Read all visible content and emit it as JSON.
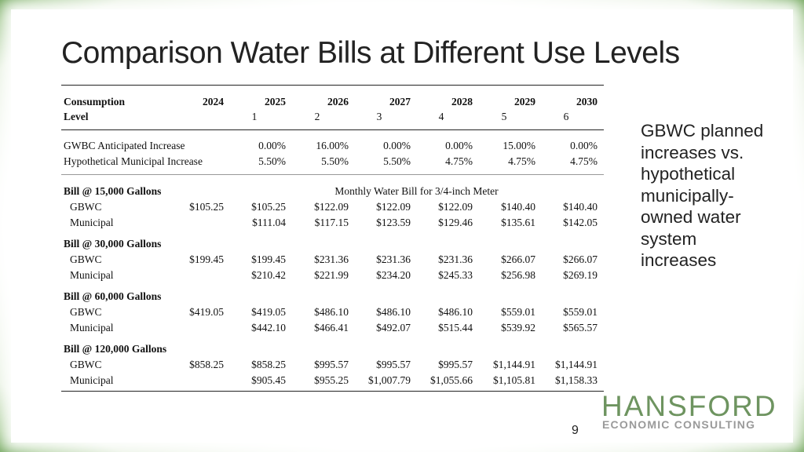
{
  "title": "Comparison Water Bills at Different Use Levels",
  "table": {
    "header": {
      "label1": "Consumption",
      "label2": "Level",
      "years": [
        "2024",
        "2025",
        "2026",
        "2027",
        "2028",
        "2029",
        "2030"
      ],
      "indices": [
        "",
        "1",
        "2",
        "3",
        "4",
        "5",
        "6"
      ]
    },
    "increases": [
      {
        "label": "GWBC Anticipated Increase",
        "values": [
          "",
          "0.00%",
          "16.00%",
          "0.00%",
          "0.00%",
          "15.00%",
          "0.00%"
        ]
      },
      {
        "label": "Hypothetical Municipal Increase",
        "values": [
          "",
          "5.50%",
          "5.50%",
          "5.50%",
          "4.75%",
          "4.75%",
          "4.75%"
        ]
      }
    ],
    "meter_note": "Monthly Water Bill for 3/4-inch Meter",
    "groups": [
      {
        "heading": "Bill @ 15,000 Gallons",
        "rows": [
          {
            "label": "GBWC",
            "values": [
              "$105.25",
              "$105.25",
              "$122.09",
              "$122.09",
              "$122.09",
              "$140.40",
              "$140.40"
            ]
          },
          {
            "label": "Municipal",
            "values": [
              "",
              "$111.04",
              "$117.15",
              "$123.59",
              "$129.46",
              "$135.61",
              "$142.05"
            ]
          }
        ]
      },
      {
        "heading": "Bill @ 30,000 Gallons",
        "rows": [
          {
            "label": "GBWC",
            "values": [
              "$199.45",
              "$199.45",
              "$231.36",
              "$231.36",
              "$231.36",
              "$266.07",
              "$266.07"
            ]
          },
          {
            "label": "Municipal",
            "values": [
              "",
              "$210.42",
              "$221.99",
              "$234.20",
              "$245.33",
              "$256.98",
              "$269.19"
            ]
          }
        ]
      },
      {
        "heading": "Bill @ 60,000 Gallons",
        "rows": [
          {
            "label": "GBWC",
            "values": [
              "$419.05",
              "$419.05",
              "$486.10",
              "$486.10",
              "$486.10",
              "$559.01",
              "$559.01"
            ]
          },
          {
            "label": "Municipal",
            "values": [
              "",
              "$442.10",
              "$466.41",
              "$492.07",
              "$515.44",
              "$539.92",
              "$565.57"
            ]
          }
        ]
      },
      {
        "heading": "Bill @ 120,000 Gallons",
        "rows": [
          {
            "label": "GBWC",
            "values": [
              "$858.25",
              "$858.25",
              "$995.57",
              "$995.57",
              "$995.57",
              "$1,144.91",
              "$1,144.91"
            ]
          },
          {
            "label": "Municipal",
            "values": [
              "",
              "$905.45",
              "$955.25",
              "$1,007.79",
              "$1,055.66",
              "$1,105.81",
              "$1,158.33"
            ]
          }
        ]
      }
    ]
  },
  "side_text": "GBWC planned increases vs. hypothetical municipally-owned water system increases",
  "logo": {
    "line1": "HANSFORD",
    "line2": "ECONOMIC CONSULTING"
  },
  "page_number": "9"
}
